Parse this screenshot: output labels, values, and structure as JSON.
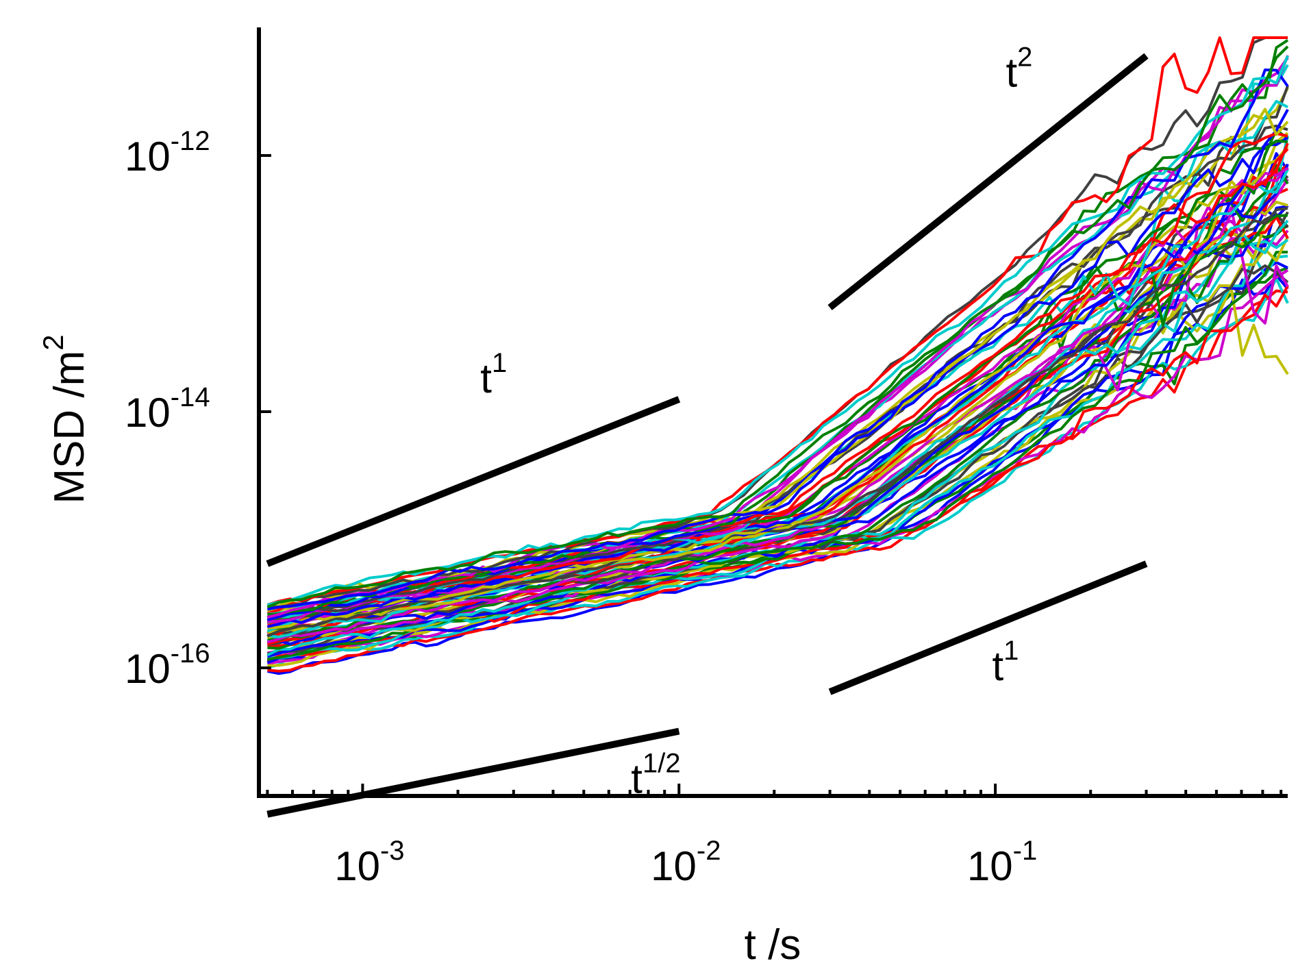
{
  "chart_data": {
    "type": "line",
    "title": "",
    "xlabel": "t /s",
    "ylabel": "MSD /m",
    "ylabel_exponent": "2",
    "xscale": "log",
    "yscale": "log",
    "xlim": [
      0.00047,
      0.84
    ],
    "ylim": [
      1e-17,
      1e-11
    ],
    "x_ticks": [
      {
        "value": 0.001,
        "base": "10",
        "exp": "-3"
      },
      {
        "value": 0.01,
        "base": "10",
        "exp": "-2"
      },
      {
        "value": 0.1,
        "base": "10",
        "exp": "-1"
      }
    ],
    "y_ticks": [
      {
        "value": 1e-16,
        "base": "10",
        "exp": "-16"
      },
      {
        "value": 1e-14,
        "base": "10",
        "exp": "-14"
      },
      {
        "value": 1e-12,
        "base": "10",
        "exp": "-12"
      }
    ],
    "grid": false,
    "legend": "none",
    "series_count": 60,
    "palette": [
      "#0000ff",
      "#ff0000",
      "#00cccc",
      "#008000",
      "#cc00cc",
      "#bfbf00",
      "#404040"
    ],
    "series_shape": "many particle trajectories: slope ~1/2 at short times, crossover near t = 0.02 s, slope ~2 up to t = 0.3 s; ensemble spans ~1e-16 to ~3e-16 at t = 5e-4 s",
    "reference_lines": [
      {
        "name": "t1-upper",
        "label": "t",
        "exp": "1",
        "x": [
          0.0005,
          0.01
        ],
        "y": [
          6.5e-16,
          1.25e-14
        ]
      },
      {
        "name": "t-half",
        "label": "t",
        "exp": "1/2",
        "x": [
          0.0005,
          0.01
        ],
        "y": [
          7.2e-18,
          3.2e-17
        ]
      },
      {
        "name": "t2",
        "label": "t",
        "exp": "2",
        "x": [
          0.03,
          0.3
        ],
        "y": [
          6.5e-14,
          6e-12
        ]
      },
      {
        "name": "t1-lower",
        "label": "t",
        "exp": "1",
        "x": [
          0.03,
          0.3
        ],
        "y": [
          6.5e-17,
          6.5e-16
        ]
      }
    ]
  }
}
